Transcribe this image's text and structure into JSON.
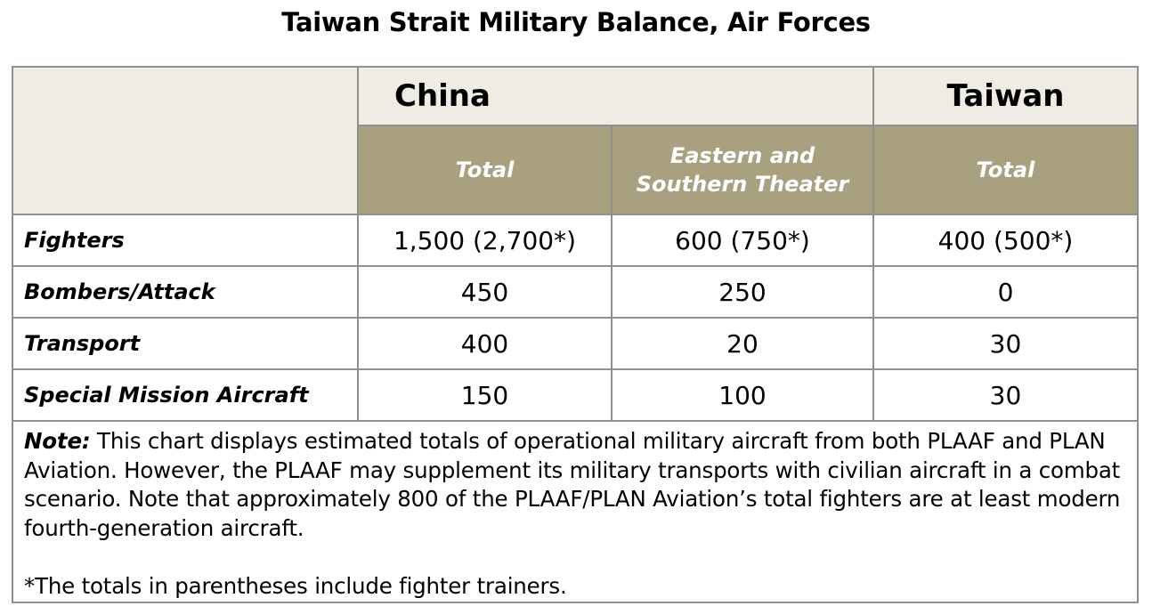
{
  "title": "Taiwan Strait Military Balance, Air Forces",
  "header": {
    "china": "China",
    "taiwan": "Taiwan",
    "china_total": "Total",
    "china_theater_line1": "Eastern and",
    "china_theater_line2": "Southern Theater",
    "taiwan_total": "Total"
  },
  "rows": [
    {
      "label": "Fighters",
      "china_total": "1,500 (2,700*)",
      "theater": "600 (750*)",
      "taiwan_total": "400 (500*)"
    },
    {
      "label": "Bombers/Attack",
      "china_total": "450",
      "theater": "250",
      "taiwan_total": "0"
    },
    {
      "label": "Transport",
      "china_total": "400",
      "theater": "20",
      "taiwan_total": "30"
    },
    {
      "label": "Special Mission Aircraft",
      "china_total": "150",
      "theater": "100",
      "taiwan_total": "30"
    }
  ],
  "note": {
    "label": "Note:",
    "text": " This chart displays estimated totals of operational military aircraft from both PLAAF and PLAN Aviation. However, the PLAAF may supplement its military transports with civilian aircraft in a combat scenario. Note that approximately 800 of the PLAAF/PLAN Aviation’s total fighters are at least modern fourth-generation aircraft.",
    "footnote": "*The totals in parentheses include fighter trainers."
  },
  "colors": {
    "header_light": "#eeece3",
    "header_dark": "#a8a07e",
    "border": "#8f8f8f"
  }
}
